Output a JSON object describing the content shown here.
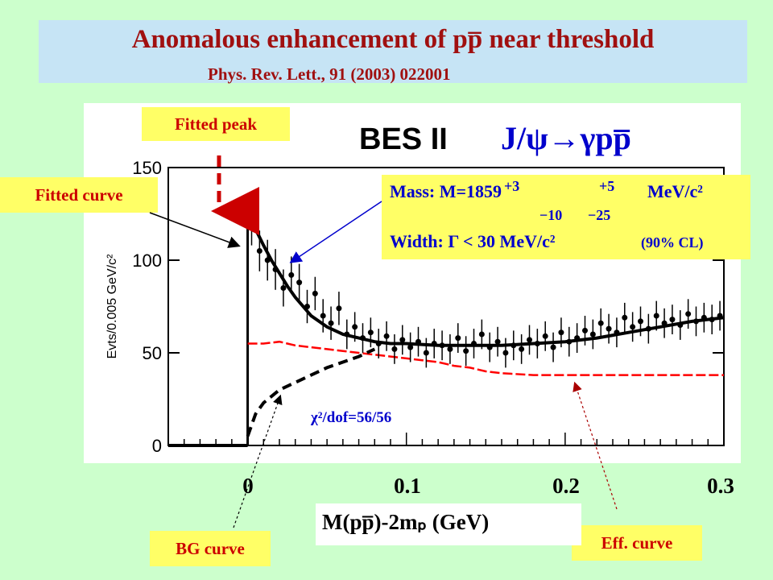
{
  "header": {
    "title": "Anomalous enhancement of pp̅ near threshold",
    "subtitle": "Phys. Rev. Lett., 91 (2003) 022001"
  },
  "annotations": {
    "fitted_peak": "Fitted peak",
    "fitted_curve": "Fitted curve",
    "bg_curve": "BG curve",
    "eff_curve": "Eff. curve",
    "chi2": "χ²/dof=56/56",
    "experiment": "BES II",
    "decay": "J/ψ→γpp̅"
  },
  "fit_result": {
    "mass_prefix": "Mass: M=1859",
    "mass_stat_up": "+3",
    "mass_stat_down": "−10",
    "mass_sys_up": "+5",
    "mass_sys_down": "−25",
    "mass_unit": "MeV/c²",
    "width_text": "Width: Γ < 30 MeV/c²",
    "width_cl": "(90% CL)"
  },
  "colors": {
    "title_red": "#a01010",
    "annotation_red": "#cc0000",
    "blue": "#0000cc",
    "panel_blue": "#c6e4f5",
    "label_yellow": "#ffff66",
    "background": "#ccffcc",
    "eff_curve": "#ff0000",
    "fitted_peak_marker": "#cc0000"
  },
  "chart_data": {
    "type": "scatter",
    "xlabel": "M(pp̅)-2mₚ (GeV)",
    "ylabel": "Evts/0.005 GeV/c²",
    "xlim": [
      -0.05,
      0.3
    ],
    "ylim": [
      0,
      150
    ],
    "x_ticks": [
      "0",
      "0.1",
      "0.2",
      "0.3"
    ],
    "x_tick_values": [
      0,
      0.1,
      0.2,
      0.3
    ],
    "y_ticks": [
      "0",
      "50",
      "100",
      "150"
    ],
    "y_tick_values": [
      0,
      50,
      100,
      150
    ],
    "series": [
      {
        "role": "data",
        "x": [
          0.0025,
          0.0075,
          0.0125,
          0.0175,
          0.0225,
          0.0275,
          0.0325,
          0.0375,
          0.0425,
          0.0475,
          0.0525,
          0.0575,
          0.0625,
          0.0675,
          0.0725,
          0.0775,
          0.0825,
          0.0875,
          0.0925,
          0.0975,
          0.1025,
          0.1075,
          0.1125,
          0.1175,
          0.1225,
          0.1275,
          0.1325,
          0.1375,
          0.1425,
          0.1475,
          0.1525,
          0.1575,
          0.1625,
          0.1675,
          0.1725,
          0.1775,
          0.1825,
          0.1875,
          0.1925,
          0.1975,
          0.2025,
          0.2075,
          0.2125,
          0.2175,
          0.2225,
          0.2275,
          0.2325,
          0.2375,
          0.2425,
          0.2475,
          0.2525,
          0.2575,
          0.2625,
          0.2675,
          0.2725,
          0.2775,
          0.2825,
          0.2875,
          0.2925,
          0.2975
        ],
        "y": [
          120,
          105,
          100,
          95,
          85,
          92,
          88,
          75,
          82,
          70,
          66,
          74,
          60,
          64,
          58,
          61,
          55,
          59,
          52,
          57,
          53,
          56,
          50,
          55,
          54,
          52,
          58,
          51,
          55,
          60,
          53,
          56,
          50,
          54,
          52,
          57,
          55,
          59,
          53,
          61,
          56,
          58,
          62,
          60,
          66,
          63,
          61,
          69,
          64,
          67,
          63,
          70,
          66,
          68,
          65,
          71,
          67,
          69,
          68,
          70
        ],
        "yerr": [
          12,
          11,
          11,
          11,
          10,
          10,
          10,
          9,
          9,
          9,
          9,
          9,
          8,
          8,
          8,
          8,
          8,
          8,
          8,
          8,
          8,
          8,
          8,
          8,
          8,
          8,
          8,
          8,
          8,
          8,
          8,
          8,
          8,
          8,
          8,
          8,
          8,
          8,
          8,
          8,
          8,
          8,
          8,
          8,
          8,
          8,
          8,
          8,
          8,
          8,
          8,
          8,
          8,
          8,
          8,
          8,
          8,
          8,
          8,
          8
        ]
      },
      {
        "role": "fitted",
        "x": [
          0,
          0.002,
          0.006,
          0.01,
          0.015,
          0.02,
          0.025,
          0.03,
          0.04,
          0.05,
          0.06,
          0.07,
          0.08,
          0.09,
          0.1,
          0.12,
          0.14,
          0.16,
          0.18,
          0.2,
          0.22,
          0.24,
          0.26,
          0.28,
          0.3
        ],
        "y": [
          118,
          120,
          115,
          108,
          100,
          93,
          86,
          80,
          70,
          64,
          60,
          58,
          56,
          55,
          55,
          54,
          54,
          54,
          55,
          56,
          58,
          61,
          64,
          67,
          69
        ]
      },
      {
        "role": "background",
        "x": [
          0,
          0.005,
          0.01,
          0.02,
          0.03,
          0.04,
          0.05,
          0.06,
          0.07,
          0.08
        ],
        "y": [
          5,
          17,
          23,
          30,
          34,
          38,
          42,
          45,
          48,
          52
        ]
      },
      {
        "role": "efficiency",
        "x": [
          0,
          0.01,
          0.02,
          0.03,
          0.04,
          0.05,
          0.06,
          0.07,
          0.08,
          0.09,
          0.1,
          0.11,
          0.12,
          0.13,
          0.14,
          0.15,
          0.16,
          0.18,
          0.2,
          0.22,
          0.24,
          0.26,
          0.28,
          0.3
        ],
        "y": [
          55,
          55,
          56,
          54,
          53,
          52,
          51,
          50,
          49,
          48,
          47,
          46,
          45,
          43,
          42,
          40,
          39,
          38,
          38,
          38,
          38,
          38,
          38,
          38
        ]
      }
    ]
  }
}
